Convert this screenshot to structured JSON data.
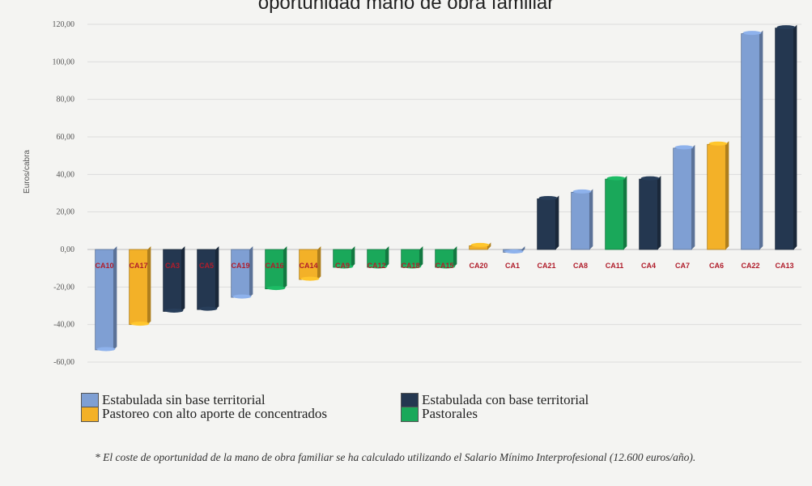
{
  "header": {
    "title": "oportunidad mano de obra familiar",
    "footnote": "* El coste de oportunidad de la mano de obra familiar se ha calculado utilizando el Salario Mínimo Interprofesional (12.600 euros/año)."
  },
  "colors": {
    "Estabulada sin base territorial": "#7f9fd3",
    "Estabulada con base territorial": "#243750",
    "Pastoreo con alto aporte de concentrados": "#f3b128",
    "Pastorales": "#1aa85a"
  },
  "chart_data": {
    "type": "bar",
    "title": "",
    "xlabel": "",
    "ylabel": "Euros/cabra",
    "ylim": [
      -60,
      120
    ],
    "yticks": [
      "120,00",
      "100,00",
      "80,00",
      "60,00",
      "40,00",
      "20,00",
      "0,00",
      "-20,00",
      "-40,00",
      "-60,00"
    ],
    "grid": true,
    "legend_position": "bottom",
    "legend": [
      "Estabulada sin base territorial",
      "Estabulada con base territorial",
      "Pastoreo con alto aporte de concentrados",
      "Pastorales"
    ],
    "categories": [
      "CA10",
      "CA17",
      "CA3",
      "CA5",
      "CA19",
      "CA16",
      "CA14",
      "CA9",
      "CA12",
      "CA18",
      "CA15",
      "CA20",
      "CA1",
      "CA21",
      "CA8",
      "CA11",
      "CA4",
      "CA7",
      "CA6",
      "CA22",
      "CA13"
    ],
    "values": [
      -53.5,
      -40,
      -33,
      -32,
      -25.5,
      -21,
      -16,
      -9.5,
      -9.5,
      -9.5,
      -9.5,
      2,
      -1.5,
      27,
      30.5,
      37.5,
      37.5,
      54,
      56,
      115,
      118
    ],
    "groups": [
      "Estabulada sin base territorial",
      "Pastoreo con alto aporte de concentrados",
      "Estabulada con base territorial",
      "Estabulada con base territorial",
      "Estabulada sin base territorial",
      "Pastorales",
      "Pastoreo con alto aporte de concentrados",
      "Pastorales",
      "Pastorales",
      "Pastorales",
      "Pastorales",
      "Pastoreo con alto aporte de concentrados",
      "Estabulada sin base territorial",
      "Estabulada con base territorial",
      "Estabulada sin base territorial",
      "Pastorales",
      "Estabulada con base territorial",
      "Estabulada sin base territorial",
      "Pastoreo con alto aporte de concentrados",
      "Estabulada sin base territorial",
      "Estabulada con base territorial"
    ]
  }
}
